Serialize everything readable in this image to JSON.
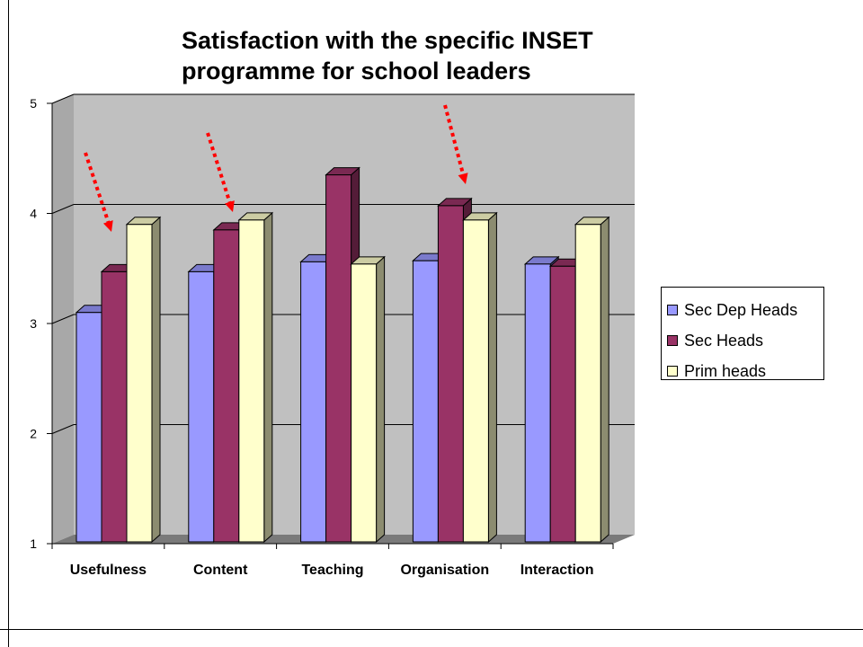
{
  "chart_data": {
    "type": "bar",
    "title": "Satisfaction with the specific INSET\nprogramme for school leaders",
    "categories": [
      "Usefulness",
      "Content",
      "Teaching",
      "Organisation",
      "Interaction"
    ],
    "series": [
      {
        "name": "Sec Dep Heads",
        "values": [
          3.1,
          3.47,
          3.56,
          3.57,
          3.54
        ],
        "color": "#9999ff"
      },
      {
        "name": "Sec Heads",
        "values": [
          3.47,
          3.85,
          4.35,
          4.07,
          3.52
        ],
        "color": "#993366"
      },
      {
        "name": "Prim heads",
        "values": [
          3.9,
          3.94,
          3.54,
          3.94,
          3.9
        ],
        "color": "#ffffcc"
      }
    ],
    "ylim": [
      1,
      5
    ],
    "yticks": [
      "1",
      "2",
      "3",
      "4",
      "5"
    ],
    "grid": true,
    "legend_position": "right",
    "annotation_arrows": {
      "color": "#ff0000",
      "count": 3,
      "style": "dotted"
    }
  }
}
